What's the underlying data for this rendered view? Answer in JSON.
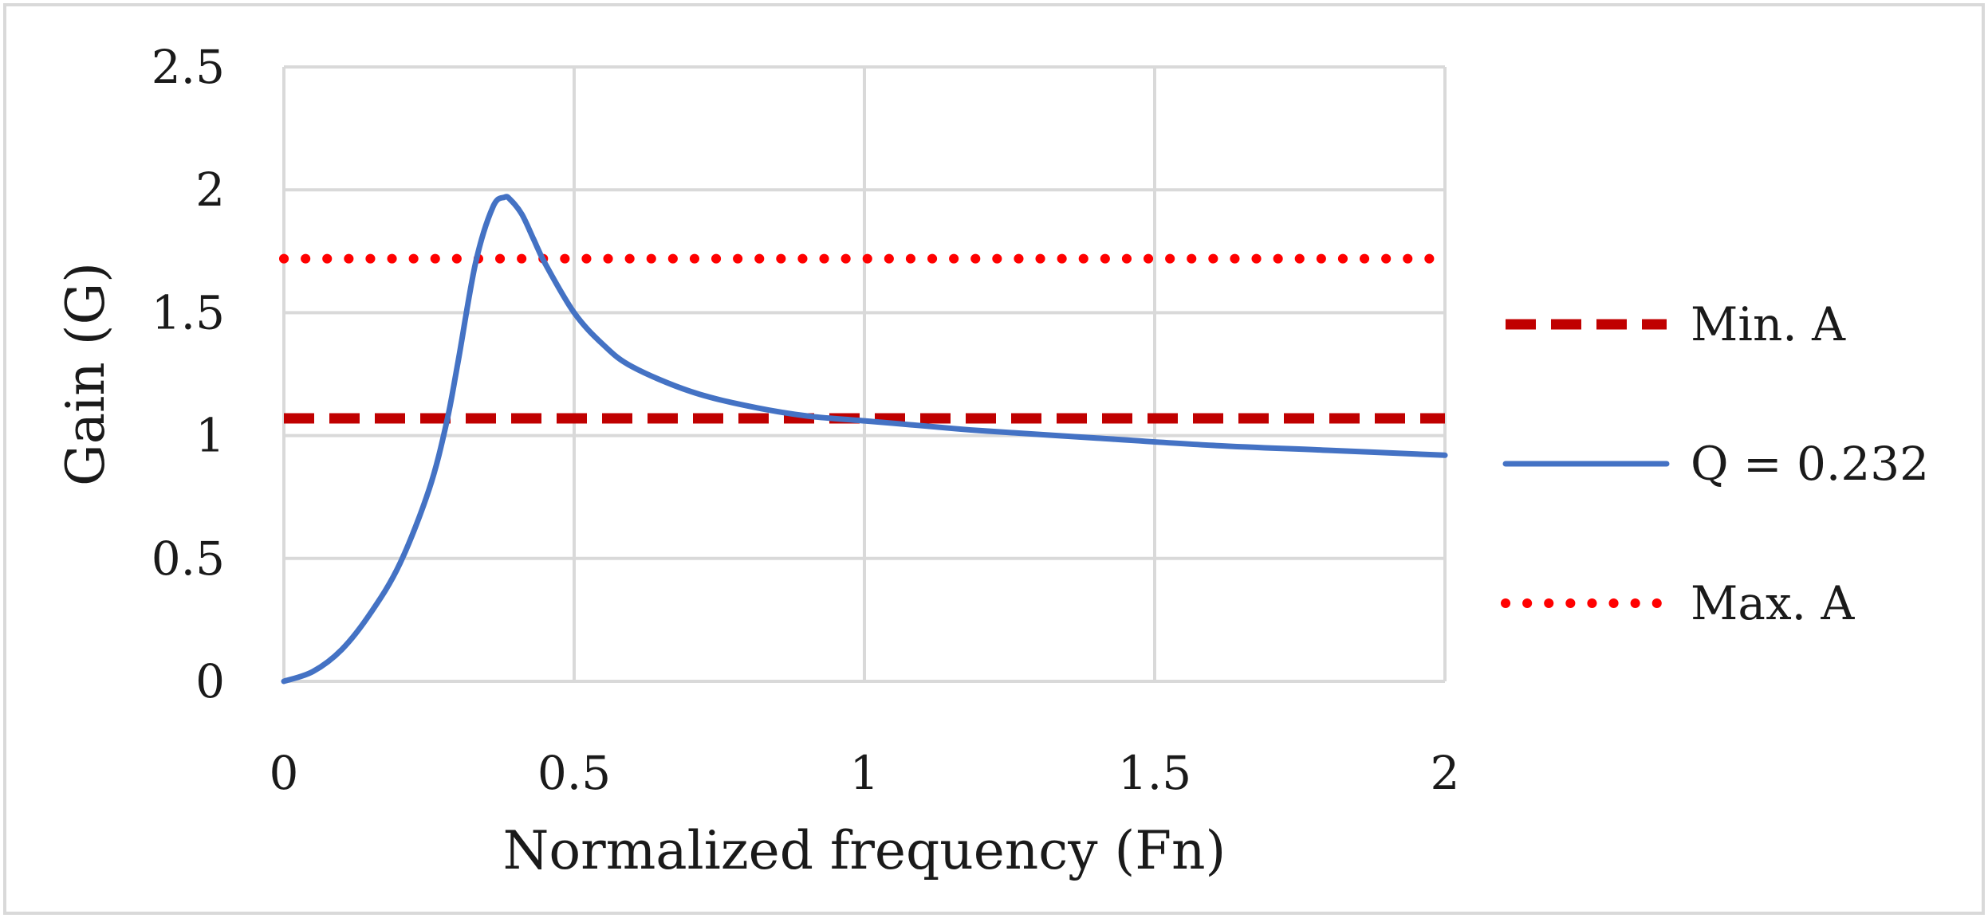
{
  "chart_data": {
    "type": "line",
    "title": "",
    "xlabel": "Normalized frequency (Fn)",
    "ylabel": "Gain (G)",
    "xlim": [
      0,
      2
    ],
    "ylim": [
      0,
      2.5
    ],
    "x_ticks": [
      0,
      0.5,
      1,
      1.5,
      2
    ],
    "x_tick_labels": [
      "0",
      "0.5",
      "1",
      "1.5",
      "2"
    ],
    "y_ticks": [
      0,
      0.5,
      1,
      1.5,
      2,
      2.5
    ],
    "y_tick_labels": [
      "0",
      "0.5",
      "1",
      "1.5",
      "2",
      "2.5"
    ],
    "grid": true,
    "legend_position": "right",
    "series": [
      {
        "name": "Min. A",
        "style": "dashed",
        "color": "#c00000",
        "x": [
          0,
          2
        ],
        "y": [
          1.07,
          1.07
        ]
      },
      {
        "name": "Q = 0.232",
        "style": "solid",
        "color": "#4472c4",
        "x": [
          0,
          0.05,
          0.1,
          0.15,
          0.2,
          0.25,
          0.28,
          0.3,
          0.33,
          0.36,
          0.38,
          0.39,
          0.41,
          0.43,
          0.45,
          0.5,
          0.55,
          0.6,
          0.7,
          0.8,
          0.9,
          1.0,
          1.1,
          1.2,
          1.4,
          1.6,
          1.8,
          2.0
        ],
        "y": [
          0,
          0.04,
          0.13,
          0.28,
          0.48,
          0.78,
          1.05,
          1.3,
          1.7,
          1.93,
          1.97,
          1.96,
          1.9,
          1.8,
          1.7,
          1.5,
          1.37,
          1.28,
          1.18,
          1.12,
          1.08,
          1.06,
          1.04,
          1.02,
          0.99,
          0.96,
          0.94,
          0.92
        ]
      },
      {
        "name": "Max. A",
        "style": "dotted",
        "color": "#ff0000",
        "x": [
          0,
          2
        ],
        "y": [
          1.72,
          1.72
        ]
      }
    ]
  }
}
